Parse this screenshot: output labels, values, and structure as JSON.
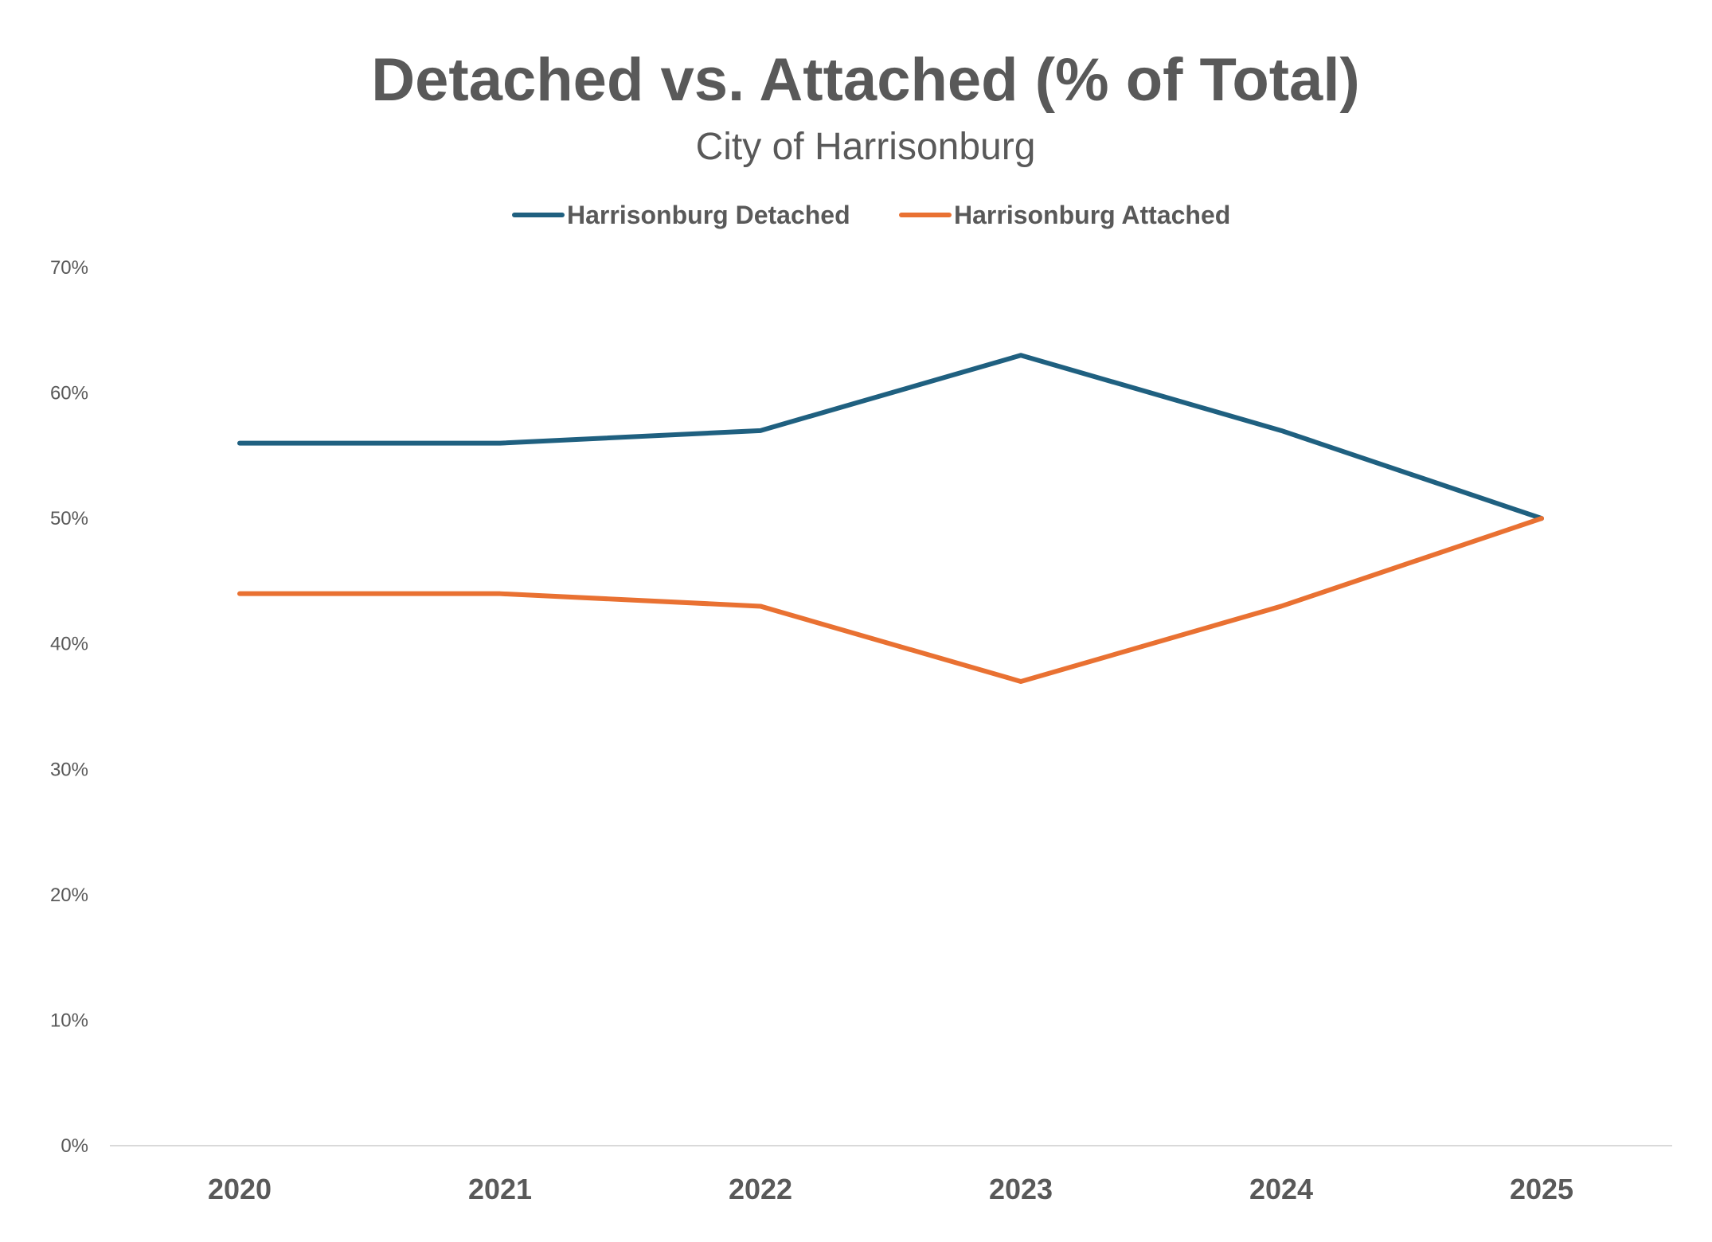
{
  "chart_data": {
    "type": "line",
    "title": "Detached vs. Attached (% of Total)",
    "subtitle": "City of Harrisonburg",
    "categories": [
      "2020",
      "2021",
      "2022",
      "2023",
      "2024",
      "2025"
    ],
    "series": [
      {
        "name": "Harrisonburg Detached",
        "color": "#1F6080",
        "values": [
          56,
          56,
          57,
          63,
          57,
          50
        ]
      },
      {
        "name": "Harrisonburg Attached",
        "color": "#E97132",
        "values": [
          44,
          44,
          43,
          37,
          43,
          50
        ]
      }
    ],
    "ylim": [
      0,
      70
    ],
    "yticks": [
      0,
      10,
      20,
      30,
      40,
      50,
      60,
      70
    ],
    "ytick_labels": [
      "0%",
      "10%",
      "20%",
      "30%",
      "40%",
      "50%",
      "60%",
      "70%"
    ],
    "xlabel": "",
    "ylabel": "",
    "legend_position": "top",
    "grid": false
  }
}
